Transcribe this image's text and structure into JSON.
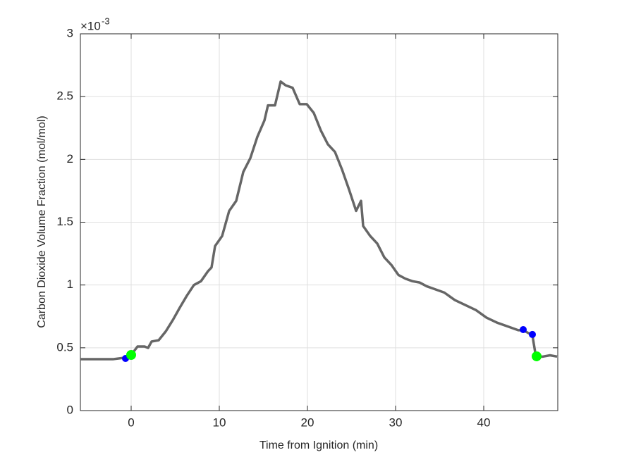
{
  "chart_data": {
    "type": "line",
    "xlabel": "Time from Ignition (min)",
    "ylabel": "Carbon Dioxide Volume Fraction (mol/mol)",
    "y_multiplier": {
      "base": "×10",
      "exponent": "-3"
    },
    "xlim": [
      -5.76,
      48.4
    ],
    "xticks": [
      0,
      10,
      20,
      30,
      40
    ],
    "ylim": [
      0,
      3
    ],
    "yticks": [
      0,
      0.5,
      1,
      1.5,
      2,
      2.5,
      3
    ],
    "grid": true,
    "series": [
      {
        "color": "#666666",
        "style": "line",
        "x": [
          -5.76,
          -2.08,
          -0.88,
          -0.48,
          0,
          0.72,
          1.52,
          1.92,
          2.32,
          3.12,
          3.92,
          4.72,
          5.52,
          6.32,
          7.12,
          7.92,
          8.72,
          9.12,
          9.52,
          10.32,
          11.12,
          11.92,
          12.72,
          13.52,
          14.32,
          15.12,
          15.52,
          16.32,
          16.96,
          17.52,
          18.32,
          19.12,
          19.92,
          20.72,
          21.52,
          22.32,
          23.12,
          23.92,
          24.72,
          25.52,
          26.08,
          26.32,
          27.12,
          27.92,
          28.72,
          29.52,
          30.32,
          31.12,
          31.92,
          32.72,
          33.52,
          34.32,
          35.52,
          36.72,
          37.92,
          39.12,
          40.32,
          41.52,
          42.72,
          43.92,
          44.48,
          45.52,
          45.92,
          46.72,
          47.52,
          48.32
        ],
        "values": [
          0.409,
          0.409,
          0.42,
          0.409,
          0.443,
          0.51,
          0.51,
          0.499,
          0.55,
          0.56,
          0.63,
          0.72,
          0.82,
          0.915,
          1.0,
          1.03,
          1.11,
          1.14,
          1.31,
          1.39,
          1.59,
          1.67,
          1.9,
          2.01,
          2.18,
          2.31,
          2.43,
          2.43,
          2.62,
          2.59,
          2.57,
          2.44,
          2.44,
          2.37,
          2.23,
          2.12,
          2.06,
          1.92,
          1.76,
          1.59,
          1.67,
          1.47,
          1.39,
          1.33,
          1.22,
          1.16,
          1.08,
          1.05,
          1.03,
          1.02,
          0.99,
          0.97,
          0.94,
          0.88,
          0.84,
          0.8,
          0.74,
          0.7,
          0.67,
          0.64,
          0.64,
          0.6,
          0.43,
          0.43,
          0.44,
          0.43
        ]
      },
      {
        "color": "#0000ff",
        "style": "marker",
        "size": 5,
        "x": [
          -0.64,
          44.48,
          45.52
        ],
        "values": [
          0.415,
          0.645,
          0.606
        ]
      },
      {
        "color": "#00ff00",
        "style": "marker",
        "size": 7,
        "x": [
          0,
          46.0
        ],
        "values": [
          0.443,
          0.432
        ]
      }
    ]
  }
}
